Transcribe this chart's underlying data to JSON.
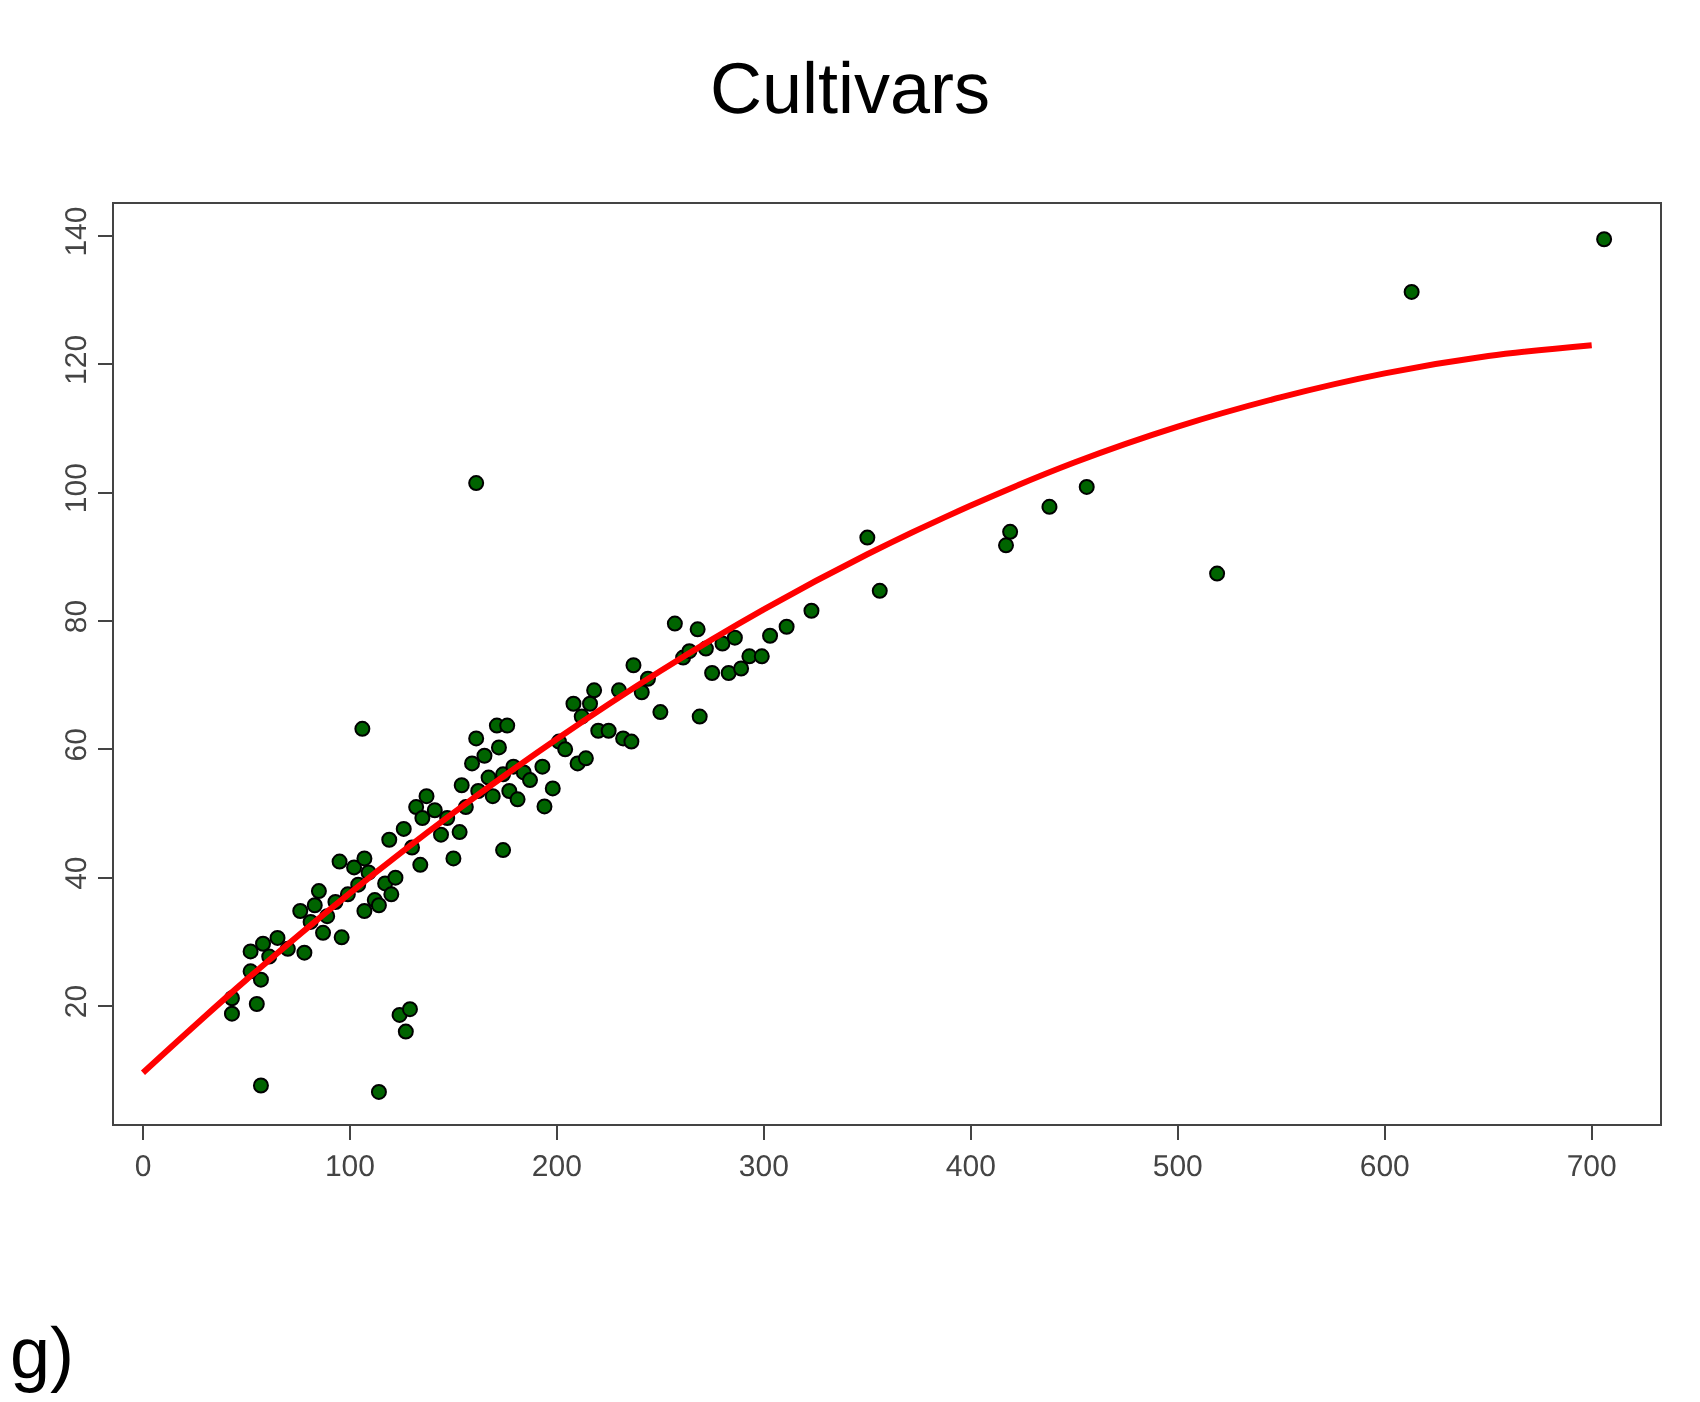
{
  "chart_data": {
    "type": "scatter",
    "title": "Cultivars",
    "annotations": [
      "g)"
    ],
    "xlim": [
      -14,
      733
    ],
    "ylim": [
      1.6,
      145
    ],
    "xticks": [
      0,
      100,
      200,
      300,
      400,
      500,
      600,
      700
    ],
    "yticks": [
      20,
      40,
      60,
      80,
      100,
      120,
      140
    ],
    "marker": "circle",
    "series": [
      {
        "color": "#006400",
        "x": [
          43,
          43,
          52,
          52,
          55,
          57,
          58,
          57,
          61,
          65,
          70,
          76,
          78,
          81,
          83,
          85,
          87,
          89,
          93,
          95,
          96,
          99,
          102,
          104,
          106,
          107,
          107,
          109,
          112,
          114,
          114,
          117,
          119,
          120,
          122,
          124,
          126,
          127,
          129,
          130,
          132,
          134,
          135,
          137,
          141,
          144,
          147,
          150,
          153,
          154,
          156,
          159,
          161,
          161,
          162,
          165,
          167,
          169,
          171,
          172,
          174,
          174,
          176,
          177,
          179,
          181,
          184,
          187,
          194,
          193,
          198,
          201,
          204,
          208,
          210,
          212,
          214,
          216,
          218,
          220,
          225,
          230,
          232,
          236,
          237,
          241,
          244,
          250,
          257,
          261,
          264,
          268,
          269,
          272,
          275,
          280,
          283,
          286,
          289,
          293,
          299,
          303,
          311,
          323,
          350,
          356,
          417,
          419,
          438,
          456,
          519,
          613,
          706
        ],
        "values": [
          21.2,
          18.8,
          28.5,
          25.4,
          20.3,
          7.6,
          29.7,
          24.1,
          27.7,
          30.6,
          28.9,
          34.8,
          28.3,
          33.1,
          35.7,
          37.9,
          31.4,
          34,
          36.2,
          42.5,
          30.7,
          37.4,
          41.6,
          38.9,
          63.2,
          43,
          34.8,
          40.8,
          36.5,
          35.7,
          6.6,
          39.1,
          45.9,
          37.4,
          40,
          18.6,
          47.6,
          16,
          19.5,
          44.7,
          51,
          42,
          49.3,
          52.7,
          50.5,
          46.7,
          49.3,
          43,
          47.1,
          54.4,
          51,
          57.8,
          61.7,
          101.5,
          53.5,
          59,
          55.6,
          52.7,
          63.7,
          60.3,
          44.3,
          56.1,
          63.7,
          53.5,
          57.3,
          52.2,
          56.4,
          55.2,
          51.1,
          57.3,
          53.9,
          61.2,
          60,
          67.1,
          57.8,
          65.1,
          58.6,
          67.1,
          69.2,
          62.9,
          62.9,
          69.2,
          61.7,
          61.2,
          73.1,
          68.9,
          71,
          65.8,
          79.6,
          74.3,
          75.3,
          78.7,
          65.1,
          75.7,
          71.9,
          76.5,
          71.9,
          77.4,
          72.6,
          74.5,
          74.5,
          77.7,
          79.1,
          81.6,
          93,
          84.7,
          91.8,
          93.9,
          97.8,
          100.9,
          87.4,
          131.3,
          139.5
        ]
      },
      {
        "type": "line",
        "color": "#ff0000",
        "line_style": "solid",
        "marker": "none",
        "x": [
          0,
          50,
          100,
          150,
          200,
          250,
          300,
          350,
          400,
          450,
          500,
          550,
          600,
          650,
          700
        ],
        "values": [
          9.6,
          24.1,
          37.6,
          50.1,
          61.6,
          72.2,
          81.8,
          90.4,
          98.0,
          104.7,
          110.3,
          114.9,
          118.6,
          121.3,
          123.0
        ]
      }
    ]
  }
}
